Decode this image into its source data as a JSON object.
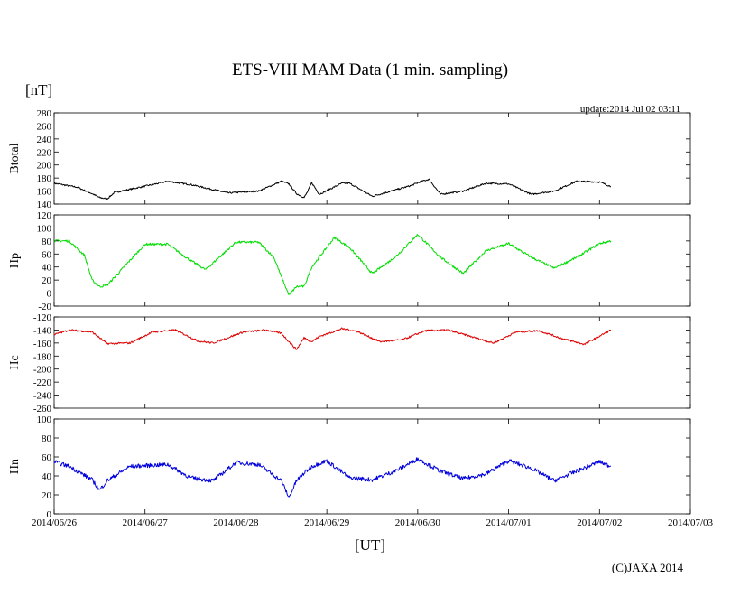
{
  "header": {
    "title": "ETS-VIII MAM Data (1 min. sampling)",
    "unit_label": "[nT]",
    "update": "update:2014 Jul 02 03:11",
    "x_unit": "[UT]",
    "credit": "(C)JAXA 2014"
  },
  "chart_data": [
    {
      "type": "line",
      "ylabel": "Btotal",
      "ylim": [
        140,
        280
      ],
      "yticks": [
        140,
        160,
        180,
        200,
        220,
        240,
        260,
        280
      ],
      "color": "#000000",
      "noise": 1.2,
      "x": [
        "2014/06/26 00:00",
        "2014/06/26 06:00",
        "2014/06/26 10:00",
        "2014/06/26 12:00",
        "2014/06/26 14:00",
        "2014/06/26 16:00",
        "2014/06/26 22:00",
        "2014/06/27 06:00",
        "2014/06/27 12:00",
        "2014/06/27 22:00",
        "2014/06/28 06:00",
        "2014/06/28 12:00",
        "2014/06/28 14:00",
        "2014/06/28 16:00",
        "2014/06/28 18:00",
        "2014/06/28 19:00",
        "2014/06/28 20:00",
        "2014/06/28 22:00",
        "2014/06/29 04:00",
        "2014/06/29 06:00",
        "2014/06/29 12:00",
        "2014/06/29 22:00",
        "2014/06/30 01:00",
        "2014/06/30 03:00",
        "2014/06/30 06:00",
        "2014/06/30 12:00",
        "2014/06/30 18:00",
        "2014/07/01 00:00",
        "2014/07/01 06:00",
        "2014/07/01 12:00",
        "2014/07/01 18:00",
        "2014/07/02 00:00",
        "2014/07/02 03:00"
      ],
      "y": [
        172,
        166,
        156,
        150,
        148,
        158,
        165,
        175,
        170,
        157,
        160,
        175,
        171,
        156,
        150,
        160,
        173,
        155,
        172,
        172,
        152,
        168,
        175,
        178,
        155,
        160,
        172,
        171,
        155,
        160,
        175,
        174,
        167
      ]
    },
    {
      "type": "line",
      "ylabel": "Hp",
      "ylim": [
        -20,
        120
      ],
      "yticks": [
        -20,
        0,
        20,
        40,
        60,
        80,
        100,
        120
      ],
      "color": "#00dd00",
      "noise": 1.8,
      "x": [
        "2014/06/26 00:00",
        "2014/06/26 04:00",
        "2014/06/26 08:00",
        "2014/06/26 10:00",
        "2014/06/26 12:00",
        "2014/06/26 14:00",
        "2014/06/27 00:00",
        "2014/06/27 06:00",
        "2014/06/27 12:00",
        "2014/06/27 16:00",
        "2014/06/28 00:00",
        "2014/06/28 06:00",
        "2014/06/28 10:00",
        "2014/06/28 12:00",
        "2014/06/28 14:00",
        "2014/06/28 16:00",
        "2014/06/28 18:00",
        "2014/06/28 20:00",
        "2014/06/29 02:00",
        "2014/06/29 06:00",
        "2014/06/29 12:00",
        "2014/06/29 18:00",
        "2014/06/30 00:00",
        "2014/06/30 06:00",
        "2014/06/30 12:00",
        "2014/06/30 18:00",
        "2014/07/01 00:00",
        "2014/07/01 06:00",
        "2014/07/01 12:00",
        "2014/07/01 18:00",
        "2014/07/02 00:00",
        "2014/07/02 03:00"
      ],
      "y": [
        80,
        80,
        58,
        20,
        10,
        12,
        75,
        75,
        50,
        36,
        78,
        78,
        55,
        25,
        -3,
        10,
        10,
        40,
        85,
        70,
        30,
        55,
        90,
        55,
        30,
        65,
        76,
        55,
        38,
        55,
        76,
        80
      ]
    },
    {
      "type": "line",
      "ylabel": "Hc",
      "ylim": [
        -260,
        -120
      ],
      "yticks": [
        -260,
        -240,
        -220,
        -200,
        -180,
        -160,
        -140,
        -120
      ],
      "color": "#dd0000",
      "noise": 1.4,
      "x": [
        "2014/06/26 00:00",
        "2014/06/26 04:00",
        "2014/06/26 10:00",
        "2014/06/26 14:00",
        "2014/06/26 20:00",
        "2014/06/27 02:00",
        "2014/06/27 08:00",
        "2014/06/27 14:00",
        "2014/06/27 18:00",
        "2014/06/28 02:00",
        "2014/06/28 08:00",
        "2014/06/28 12:00",
        "2014/06/28 14:00",
        "2014/06/28 16:00",
        "2014/06/28 18:00",
        "2014/06/28 20:00",
        "2014/06/28 22:00",
        "2014/06/29 04:00",
        "2014/06/29 08:00",
        "2014/06/29 14:00",
        "2014/06/29 20:00",
        "2014/06/30 02:00",
        "2014/06/30 08:00",
        "2014/06/30 14:00",
        "2014/06/30 20:00",
        "2014/07/01 02:00",
        "2014/07/01 08:00",
        "2014/07/01 14:00",
        "2014/07/01 20:00",
        "2014/07/02 03:00"
      ],
      "y": [
        -147,
        -140,
        -143,
        -161,
        -160,
        -143,
        -140,
        -157,
        -160,
        -143,
        -140,
        -145,
        -158,
        -170,
        -152,
        -158,
        -150,
        -138,
        -142,
        -158,
        -155,
        -141,
        -140,
        -150,
        -160,
        -143,
        -141,
        -153,
        -162,
        -140
      ]
    },
    {
      "type": "line",
      "ylabel": "Hn",
      "ylim": [
        0,
        100
      ],
      "yticks": [
        0,
        20,
        40,
        60,
        80,
        100
      ],
      "color": "#0000dd",
      "noise": 2.2,
      "x": [
        "2014/06/26 00:00",
        "2014/06/26 04:00",
        "2014/06/26 10:00",
        "2014/06/26 12:00",
        "2014/06/26 14:00",
        "2014/06/26 20:00",
        "2014/06/27 06:00",
        "2014/06/27 12:00",
        "2014/06/27 18:00",
        "2014/06/28 00:00",
        "2014/06/28 06:00",
        "2014/06/28 12:00",
        "2014/06/28 14:00",
        "2014/06/28 16:00",
        "2014/06/28 18:00",
        "2014/06/28 20:00",
        "2014/06/29 00:00",
        "2014/06/29 06:00",
        "2014/06/29 12:00",
        "2014/06/29 18:00",
        "2014/06/30 00:00",
        "2014/06/30 06:00",
        "2014/06/30 12:00",
        "2014/06/30 18:00",
        "2014/07/01 00:00",
        "2014/07/01 06:00",
        "2014/07/01 12:00",
        "2014/07/01 18:00",
        "2014/07/02 00:00",
        "2014/07/02 03:00"
      ],
      "y": [
        55,
        50,
        36,
        25,
        35,
        50,
        52,
        38,
        35,
        54,
        52,
        35,
        17,
        35,
        43,
        50,
        56,
        38,
        36,
        45,
        58,
        45,
        37,
        42,
        56,
        48,
        35,
        45,
        55,
        50
      ]
    }
  ],
  "x_axis": {
    "ticks": [
      "2014/06/26",
      "2014/06/27",
      "2014/06/28",
      "2014/06/29",
      "2014/06/30",
      "2014/07/01",
      "2014/07/02",
      "2014/07/03"
    ]
  }
}
